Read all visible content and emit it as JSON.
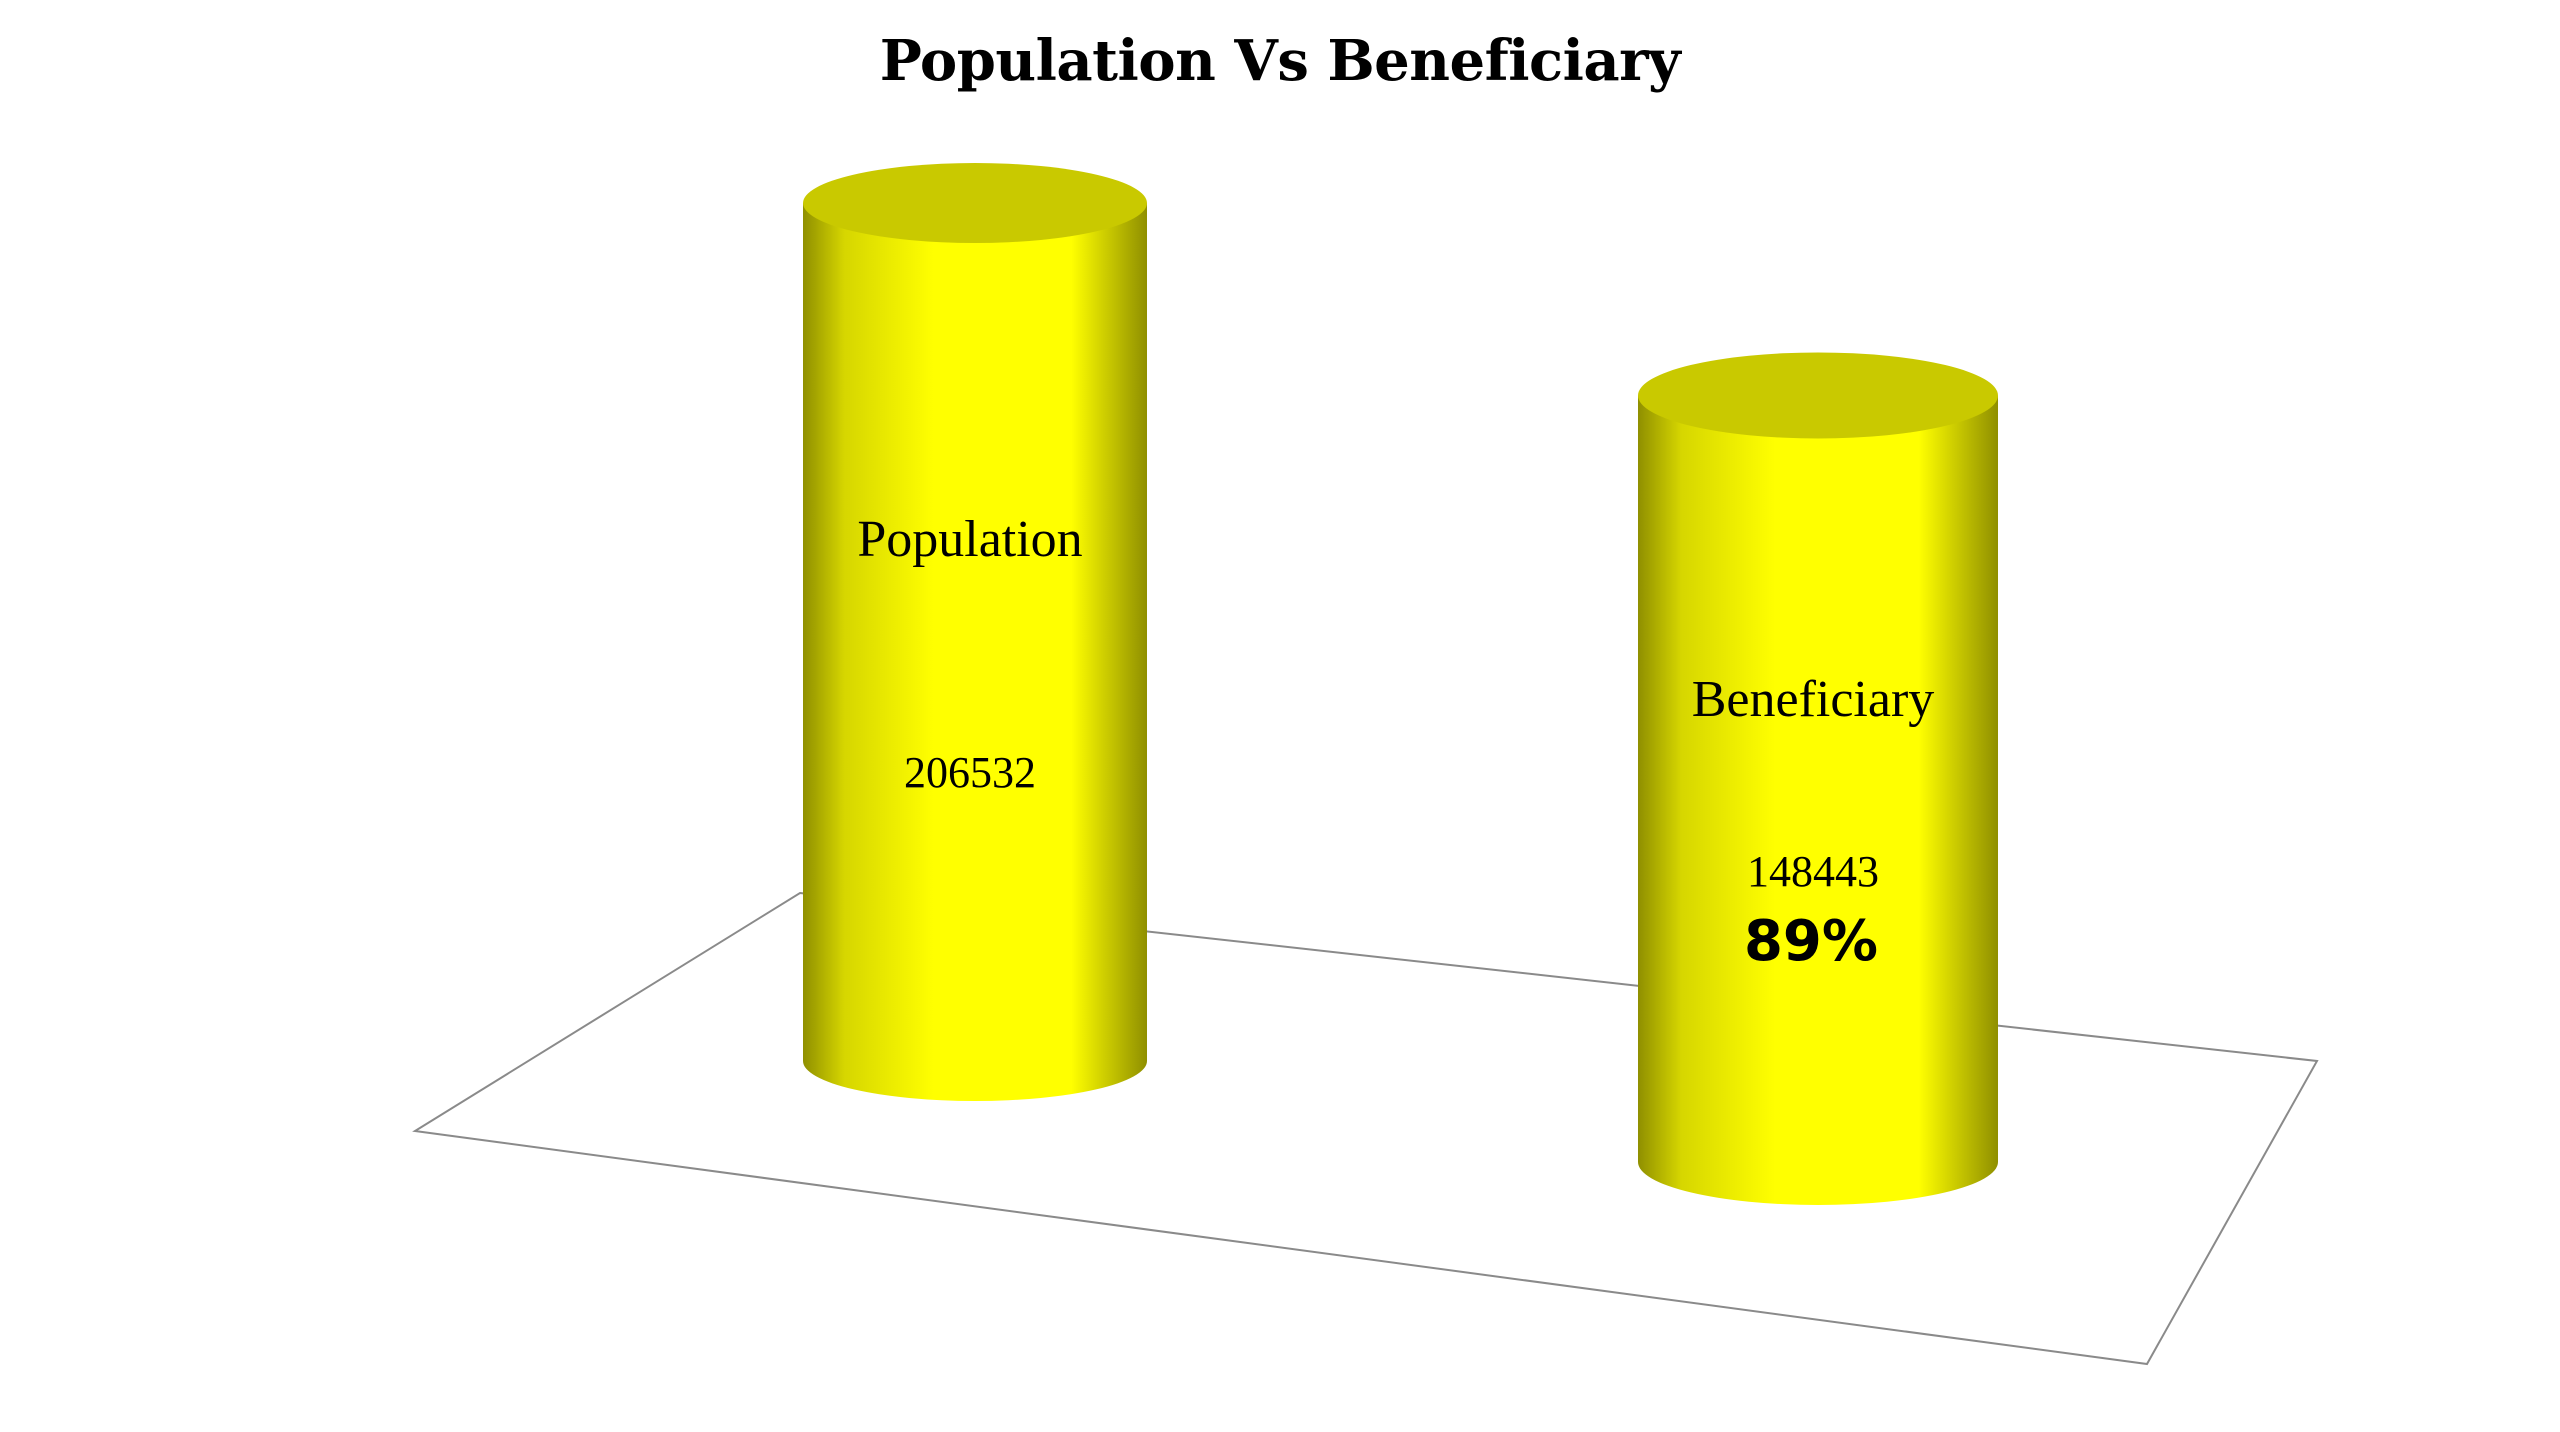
{
  "chart_data": {
    "type": "bar",
    "style": "3d-cylinder",
    "title": "Population Vs Beneficiary",
    "xlabel": "",
    "ylabel": "",
    "categories": [
      "Population",
      "Beneficiary"
    ],
    "values": [
      206532,
      148443
    ],
    "value_labels": [
      "206532",
      "148443"
    ],
    "annotations": [
      {
        "category": "Beneficiary",
        "text": "89%"
      }
    ],
    "grid": false,
    "legend": "none",
    "colors": {
      "bar": "#ffff00",
      "bar_top": "#c9c900",
      "bar_shade": "#8f8f00",
      "floor_line": "#8a8a8a",
      "text": "#000000",
      "background": "#ffffff"
    }
  }
}
